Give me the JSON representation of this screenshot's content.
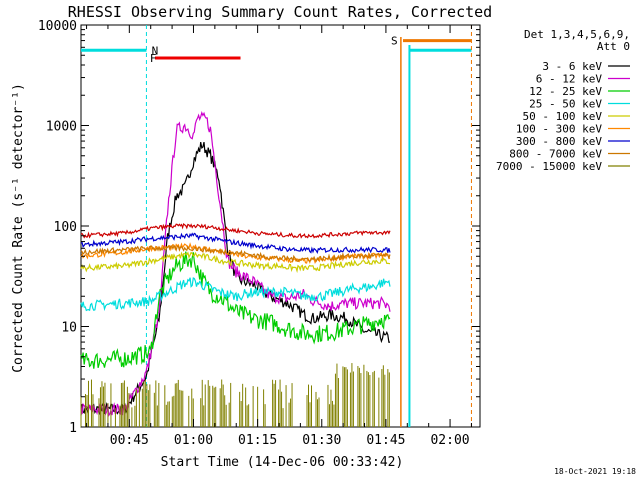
{
  "chart_data": {
    "type": "line",
    "title": "RHESSI Observing Summary Count Rates, Corrected",
    "xlabel": "Start Time (14-Dec-06 00:33:42)",
    "ylabel": "Corrected Count Rate (s⁻¹ detector⁻¹)",
    "yscale": "log",
    "ylim": [
      1,
      10000
    ],
    "xlim": [
      "00:33:42",
      "02:07:00"
    ],
    "x_tick_labels": [
      "00:45",
      "01:00",
      "01:15",
      "01:30",
      "01:45",
      "02:00"
    ],
    "x_ticks_min": [
      45,
      60,
      75,
      90,
      105,
      120
    ],
    "y_tick_labels": [
      "1",
      "10",
      "100",
      "1000",
      "10000"
    ],
    "y_ticks": [
      1,
      10,
      100,
      1000,
      10000
    ],
    "legend_header": [
      "Det 1,3,4,5,6,9,",
      "Att 0"
    ],
    "legend_position": "right",
    "series": [
      {
        "name": "3 - 6 keV",
        "color": "#000000",
        "points": [
          [
            33.7,
            1.5
          ],
          [
            44,
            1.5
          ],
          [
            49,
            3.2
          ],
          [
            52,
            12
          ],
          [
            54,
            80
          ],
          [
            56,
            200
          ],
          [
            58,
            240
          ],
          [
            60,
            450
          ],
          [
            62,
            650
          ],
          [
            64,
            500
          ],
          [
            66,
            300
          ],
          [
            68,
            60
          ],
          [
            70,
            30
          ],
          [
            74,
            26
          ],
          [
            78,
            20
          ],
          [
            82,
            17
          ],
          [
            86,
            13
          ],
          [
            88,
            12
          ],
          [
            92,
            13
          ],
          [
            96,
            12
          ],
          [
            100,
            9
          ],
          [
            104,
            8
          ],
          [
            106,
            7.5
          ]
        ]
      },
      {
        "name": "6 - 12 keV",
        "color": "#cc00cc",
        "points": [
          [
            33.7,
            1.5
          ],
          [
            44,
            1.5
          ],
          [
            49,
            3.5
          ],
          [
            52,
            14
          ],
          [
            54,
            150
          ],
          [
            56,
            900
          ],
          [
            58,
            1000
          ],
          [
            60,
            800
          ],
          [
            61,
            1200
          ],
          [
            63,
            1150
          ],
          [
            64,
            900
          ],
          [
            66,
            200
          ],
          [
            68,
            45
          ],
          [
            70,
            35
          ],
          [
            74,
            28
          ],
          [
            78,
            20
          ],
          [
            82,
            19
          ],
          [
            86,
            21
          ],
          [
            88,
            18
          ],
          [
            90,
            17
          ],
          [
            92,
            16
          ],
          [
            96,
            17
          ],
          [
            100,
            17
          ],
          [
            104,
            17
          ],
          [
            106,
            16
          ]
        ]
      },
      {
        "name": "12 - 25 keV",
        "color": "#00cc00",
        "points": [
          [
            33.7,
            4.5
          ],
          [
            44,
            4.8
          ],
          [
            50,
            5.5
          ],
          [
            52,
            20
          ],
          [
            54,
            30
          ],
          [
            56,
            40
          ],
          [
            58,
            45
          ],
          [
            60,
            48
          ],
          [
            62,
            30
          ],
          [
            64,
            22
          ],
          [
            66,
            20
          ],
          [
            70,
            14
          ],
          [
            74,
            12
          ],
          [
            78,
            11
          ],
          [
            82,
            9.5
          ],
          [
            86,
            8.5
          ],
          [
            90,
            8.5
          ],
          [
            94,
            9
          ],
          [
            98,
            10
          ],
          [
            102,
            11
          ],
          [
            104,
            12
          ],
          [
            106,
            11
          ]
        ]
      },
      {
        "name": "25 - 50 keV",
        "color": "#00dddd",
        "points": [
          [
            33.7,
            16
          ],
          [
            44,
            17
          ],
          [
            50,
            18
          ],
          [
            54,
            22
          ],
          [
            58,
            27
          ],
          [
            60,
            28
          ],
          [
            62,
            26
          ],
          [
            66,
            22
          ],
          [
            70,
            20
          ],
          [
            74,
            22
          ],
          [
            78,
            22
          ],
          [
            82,
            22
          ],
          [
            86,
            20
          ],
          [
            90,
            20
          ],
          [
            94,
            22
          ],
          [
            98,
            24
          ],
          [
            102,
            25
          ],
          [
            104,
            27
          ],
          [
            106,
            28
          ]
        ]
      },
      {
        "name": "50 - 100 keV",
        "color": "#cccc00",
        "points": [
          [
            33.7,
            38
          ],
          [
            44,
            40
          ],
          [
            50,
            45
          ],
          [
            56,
            50
          ],
          [
            60,
            52
          ],
          [
            64,
            48
          ],
          [
            68,
            44
          ],
          [
            72,
            42
          ],
          [
            76,
            40
          ],
          [
            80,
            40
          ],
          [
            84,
            38
          ],
          [
            88,
            38
          ],
          [
            92,
            40
          ],
          [
            96,
            42
          ],
          [
            100,
            44
          ],
          [
            104,
            45
          ],
          [
            106,
            44
          ]
        ]
      },
      {
        "name": "100 - 300 keV",
        "color": "#ff8800",
        "points": [
          [
            33.7,
            50
          ],
          [
            44,
            55
          ],
          [
            50,
            60
          ],
          [
            56,
            62
          ],
          [
            60,
            63
          ],
          [
            64,
            58
          ],
          [
            68,
            54
          ],
          [
            72,
            50
          ],
          [
            76,
            48
          ],
          [
            80,
            47
          ],
          [
            84,
            45
          ],
          [
            88,
            45
          ],
          [
            92,
            47
          ],
          [
            96,
            50
          ],
          [
            100,
            50
          ],
          [
            104,
            51
          ],
          [
            106,
            50
          ]
        ]
      },
      {
        "name": "300 - 800 keV",
        "color": "#0000cc",
        "points": [
          [
            33.7,
            65
          ],
          [
            44,
            70
          ],
          [
            50,
            75
          ],
          [
            56,
            78
          ],
          [
            60,
            80
          ],
          [
            64,
            75
          ],
          [
            68,
            70
          ],
          [
            72,
            66
          ],
          [
            76,
            63
          ],
          [
            80,
            60
          ],
          [
            84,
            58
          ],
          [
            88,
            57
          ],
          [
            92,
            58
          ],
          [
            96,
            58
          ],
          [
            100,
            58
          ],
          [
            104,
            58
          ],
          [
            106,
            57
          ]
        ]
      },
      {
        "name": "800 - 7000 keV",
        "color": "#cc7700",
        "points": [
          [
            33.7,
            55
          ],
          [
            44,
            58
          ],
          [
            50,
            60
          ],
          [
            56,
            60
          ],
          [
            60,
            60
          ],
          [
            64,
            57
          ],
          [
            68,
            55
          ],
          [
            72,
            53
          ],
          [
            76,
            50
          ],
          [
            80,
            48
          ],
          [
            84,
            47
          ],
          [
            88,
            47
          ],
          [
            92,
            48
          ],
          [
            96,
            50
          ],
          [
            100,
            50
          ],
          [
            104,
            51
          ],
          [
            106,
            50
          ]
        ]
      },
      {
        "name": "7000 - 15000 keV",
        "color": "#808000",
        "points": [
          [
            33.7,
            1.5
          ],
          [
            44,
            1.5
          ],
          [
            50,
            2
          ],
          [
            60,
            2
          ],
          [
            70,
            1.5
          ],
          [
            80,
            1.5
          ],
          [
            88,
            1.5
          ],
          [
            94,
            2.5
          ],
          [
            100,
            3
          ],
          [
            104,
            3
          ],
          [
            106,
            3
          ]
        ]
      }
    ],
    "red_series": {
      "color": "#cc0000",
      "points": [
        [
          33.7,
          80
        ],
        [
          44,
          85
        ],
        [
          50,
          95
        ],
        [
          56,
          100
        ],
        [
          60,
          100
        ],
        [
          64,
          98
        ],
        [
          68,
          92
        ],
        [
          72,
          88
        ],
        [
          76,
          84
        ],
        [
          80,
          82
        ],
        [
          84,
          80
        ],
        [
          88,
          80
        ],
        [
          92,
          82
        ],
        [
          96,
          84
        ],
        [
          100,
          86
        ],
        [
          104,
          86
        ],
        [
          106,
          86
        ]
      ]
    },
    "flags": [
      {
        "label": "F",
        "color": "#ee0000"
      },
      {
        "label": "N",
        "color": "#00dddd"
      },
      {
        "label": "S",
        "color": "#ee7700"
      }
    ]
  },
  "footer": {
    "timestamp": "18-Oct-2021 19:18"
  }
}
